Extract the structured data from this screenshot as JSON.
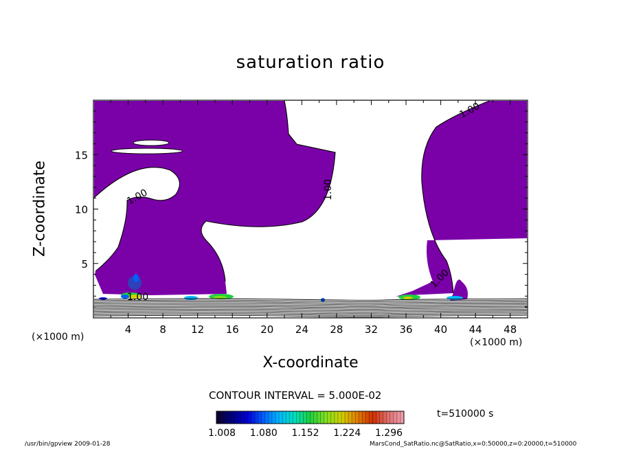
{
  "chart_data": {
    "type": "contour",
    "title": "saturation ratio",
    "xlabel": "X-coordinate",
    "ylabel": "Z-coordinate",
    "x_unit_left": "(×1000 m)",
    "x_unit_right": "(×1000 m)",
    "xlim": [
      0,
      50
    ],
    "ylim": [
      0,
      20
    ],
    "xticks": [
      4,
      8,
      12,
      16,
      20,
      24,
      28,
      32,
      36,
      40,
      44,
      48
    ],
    "yticks": [
      5,
      10,
      15
    ],
    "fill_color": "#7a00a8",
    "contour_level_label": "1.00",
    "contour_interval": "CONTOUR INTERVAL = 5.000E-02",
    "time_label": "t=510000 s",
    "colorbar": {
      "ticks": [
        "1.008",
        "1.080",
        "1.152",
        "1.224",
        "1.296"
      ],
      "colors": [
        "#10002a",
        "#000080",
        "#0000d8",
        "#0060ff",
        "#00b8ff",
        "#00e0c0",
        "#20d040",
        "#80e020",
        "#d0d000",
        "#e08000",
        "#d03000",
        "#e07070",
        "#f0a0b0"
      ]
    }
  },
  "footer": {
    "left": "/usr/bin/gpview   2009-01-28",
    "right": "MarsCond_SatRatio.nc@SatRatio,x=0:50000,z=0:20000,t=510000"
  }
}
